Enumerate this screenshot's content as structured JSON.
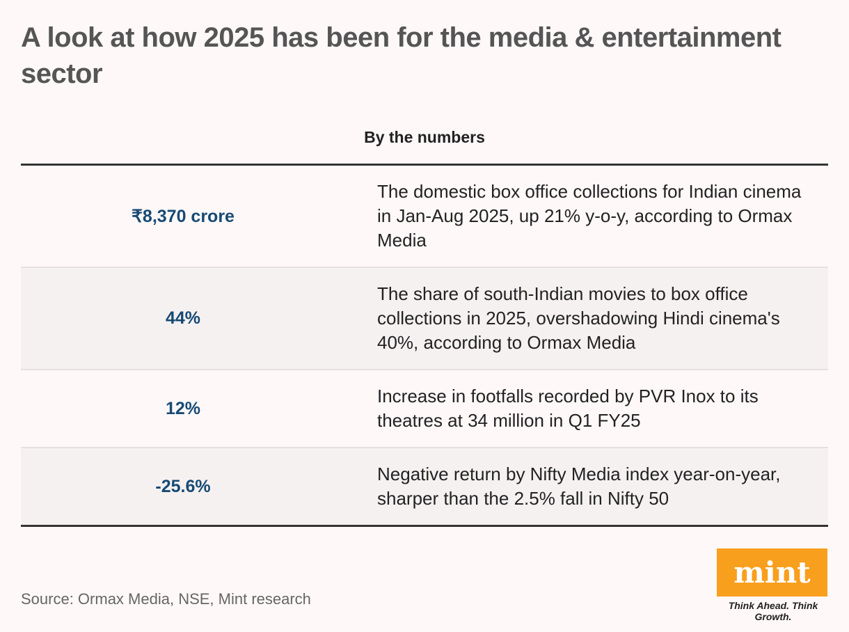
{
  "title": "A look at how 2025 has been for the media & entertainment sector",
  "subtitle": "By the numbers",
  "rows": [
    {
      "value": "₹8,370 crore",
      "description": "The domestic box office collections for Indian cinema in Jan-Aug 2025, up 21% y-o-y, according to Ormax Media"
    },
    {
      "value": "44%",
      "description": "The share of south-Indian movies to box office collections in 2025, overshadowing Hindi cinema's 40%, according to Ormax Media"
    },
    {
      "value": "12%",
      "description": "Increase in footfalls recorded by PVR Inox to its theatres at 34 million in Q1 FY25"
    },
    {
      "value": "-25.6%",
      "description": "Negative return by Nifty Media index year-on-year, sharper than the 2.5% fall in Nifty 50"
    }
  ],
  "source": "Source: Ormax Media, NSE, Mint research",
  "logo": {
    "text": "mint",
    "tagline": "Think Ahead. Think Growth."
  },
  "colors": {
    "value_text": "#164a74",
    "logo_bg": "#f99f1e",
    "background": "#fff8f8"
  }
}
